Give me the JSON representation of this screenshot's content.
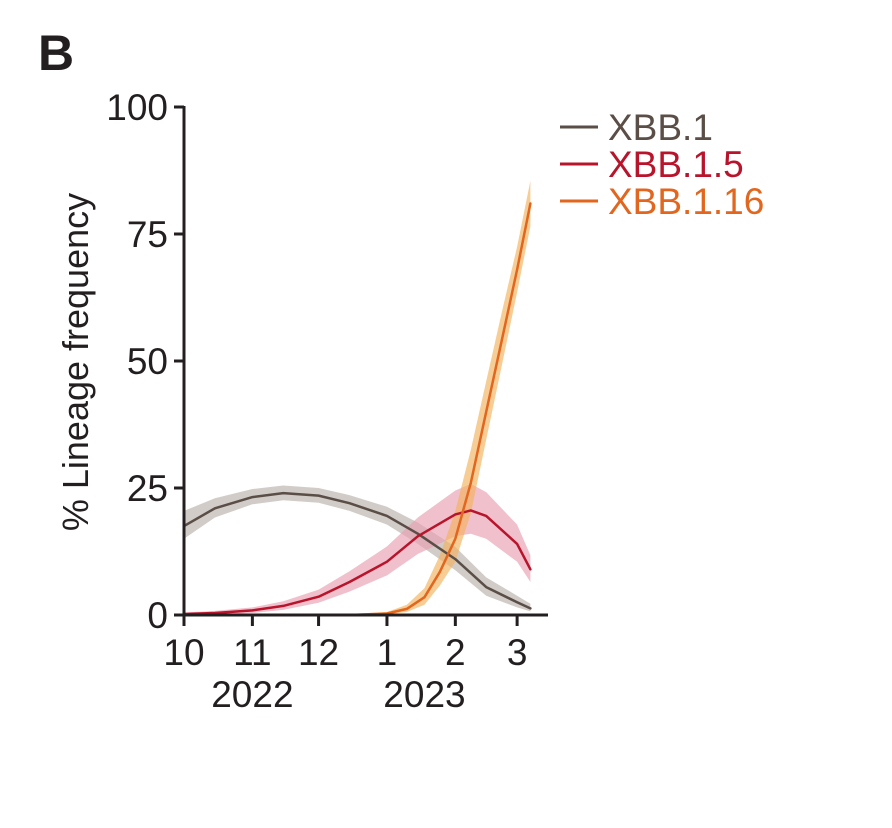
{
  "panel_label": "B",
  "chart_data": {
    "type": "line",
    "title": "",
    "xlabel": "",
    "ylabel": "% Lineage frequency",
    "xlim": [
      "2022-10-01",
      "2023-03-15"
    ],
    "ylim": [
      0,
      100
    ],
    "x_ticks": [
      {
        "date": "2022-10-01",
        "label": "10"
      },
      {
        "date": "2022-11-01",
        "label": "11"
      },
      {
        "date": "2022-12-01",
        "label": "12"
      },
      {
        "date": "2023-01-01",
        "label": "1"
      },
      {
        "date": "2023-02-01",
        "label": "2"
      },
      {
        "date": "2023-03-01",
        "label": "3"
      }
    ],
    "year_labels": [
      {
        "date": "2022-11-01",
        "label": "2022"
      },
      {
        "date": "2023-01-18",
        "label": "2023"
      }
    ],
    "y_ticks": [
      0,
      25,
      50,
      75,
      100
    ],
    "y_tick_labels": [
      "0",
      "25",
      "50",
      "75",
      "100"
    ],
    "grid": false,
    "legend_position": "top-right",
    "series": [
      {
        "name": "XBB.1",
        "color": "#5a4e47",
        "band_color": "#b8b0aa",
        "points": [
          {
            "x": "2022-10-01",
            "y": 17.5,
            "lo": 15.0,
            "hi": 20.5
          },
          {
            "x": "2022-10-15",
            "y": 21.0,
            "lo": 19.2,
            "hi": 23.0
          },
          {
            "x": "2022-11-01",
            "y": 23.2,
            "lo": 21.8,
            "hi": 24.8
          },
          {
            "x": "2022-11-15",
            "y": 24.0,
            "lo": 22.6,
            "hi": 25.5
          },
          {
            "x": "2022-12-01",
            "y": 23.5,
            "lo": 22.1,
            "hi": 25.0
          },
          {
            "x": "2022-12-15",
            "y": 22.0,
            "lo": 20.5,
            "hi": 23.6
          },
          {
            "x": "2023-01-01",
            "y": 19.5,
            "lo": 17.8,
            "hi": 21.3
          },
          {
            "x": "2023-01-15",
            "y": 16.0,
            "lo": 14.0,
            "hi": 18.2
          },
          {
            "x": "2023-02-01",
            "y": 11.0,
            "lo": 8.8,
            "hi": 13.4
          },
          {
            "x": "2023-02-15",
            "y": 5.5,
            "lo": 3.8,
            "hi": 7.4
          },
          {
            "x": "2023-03-01",
            "y": 2.5,
            "lo": 1.5,
            "hi": 3.8
          },
          {
            "x": "2023-03-07",
            "y": 1.3,
            "lo": 0.7,
            "hi": 2.2
          }
        ]
      },
      {
        "name": "XBB.1.5",
        "color": "#b8142c",
        "band_color": "#e8a0b0",
        "points": [
          {
            "x": "2022-10-01",
            "y": 0.2,
            "lo": 0.0,
            "hi": 0.5
          },
          {
            "x": "2022-10-15",
            "y": 0.4,
            "lo": 0.1,
            "hi": 0.8
          },
          {
            "x": "2022-11-01",
            "y": 0.9,
            "lo": 0.4,
            "hi": 1.5
          },
          {
            "x": "2022-11-15",
            "y": 1.8,
            "lo": 1.0,
            "hi": 2.7
          },
          {
            "x": "2022-12-01",
            "y": 3.6,
            "lo": 2.4,
            "hi": 5.0
          },
          {
            "x": "2022-12-15",
            "y": 6.5,
            "lo": 4.6,
            "hi": 8.6
          },
          {
            "x": "2023-01-01",
            "y": 10.5,
            "lo": 7.8,
            "hi": 13.5
          },
          {
            "x": "2023-01-15",
            "y": 15.5,
            "lo": 12.0,
            "hi": 19.2
          },
          {
            "x": "2023-02-01",
            "y": 19.8,
            "lo": 15.5,
            "hi": 24.5
          },
          {
            "x": "2023-02-08",
            "y": 20.6,
            "lo": 16.0,
            "hi": 25.8
          },
          {
            "x": "2023-02-15",
            "y": 19.5,
            "lo": 15.0,
            "hi": 24.2
          },
          {
            "x": "2023-03-01",
            "y": 14.0,
            "lo": 10.5,
            "hi": 17.8
          },
          {
            "x": "2023-03-07",
            "y": 9.0,
            "lo": 6.5,
            "hi": 11.8
          }
        ]
      },
      {
        "name": "XBB.1.16",
        "color": "#e2661e",
        "band_color": "#f3b25d",
        "points": [
          {
            "x": "2022-12-15",
            "y": 0.0,
            "lo": 0.0,
            "hi": 0.2
          },
          {
            "x": "2023-01-01",
            "y": 0.3,
            "lo": 0.1,
            "hi": 0.6
          },
          {
            "x": "2023-01-10",
            "y": 1.2,
            "lo": 0.6,
            "hi": 2.0
          },
          {
            "x": "2023-01-18",
            "y": 3.5,
            "lo": 2.0,
            "hi": 5.3
          },
          {
            "x": "2023-01-25",
            "y": 8.5,
            "lo": 5.8,
            "hi": 11.8
          },
          {
            "x": "2023-02-01",
            "y": 15.0,
            "lo": 10.5,
            "hi": 20.5
          },
          {
            "x": "2023-02-08",
            "y": 26.0,
            "lo": 20.0,
            "hi": 32.5
          },
          {
            "x": "2023-02-15",
            "y": 40.0,
            "lo": 34.5,
            "hi": 46.0
          },
          {
            "x": "2023-02-22",
            "y": 54.0,
            "lo": 49.0,
            "hi": 59.5
          },
          {
            "x": "2023-03-01",
            "y": 68.0,
            "lo": 63.5,
            "hi": 72.5
          },
          {
            "x": "2023-03-07",
            "y": 81.0,
            "lo": 76.5,
            "hi": 85.5
          }
        ]
      }
    ]
  }
}
